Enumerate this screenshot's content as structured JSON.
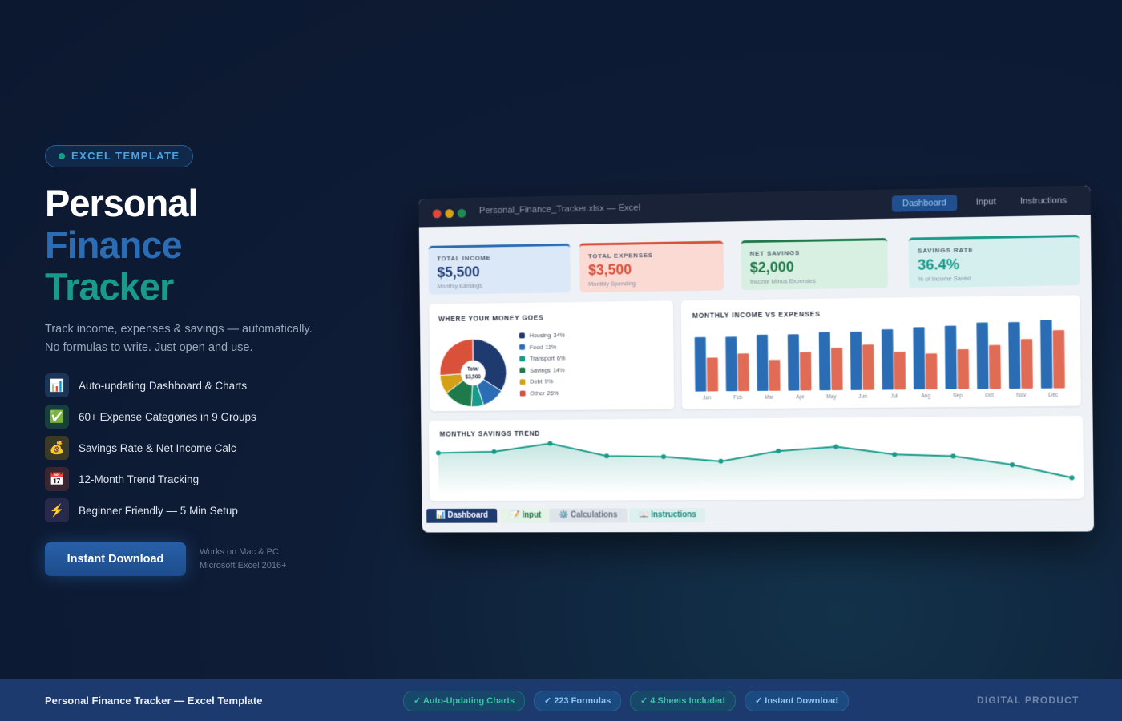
{
  "badge": "EXCEL TEMPLATE",
  "title": [
    "Personal",
    "Finance",
    "Tracker"
  ],
  "description": [
    "Track income, expenses & savings — automatically.",
    "No formulas to write. Just open and use."
  ],
  "features": [
    {
      "icon": "📊",
      "text": "Auto-updating Dashboard & Charts"
    },
    {
      "icon": "✅",
      "text": "60+ Expense Categories in 9 Groups"
    },
    {
      "icon": "💰",
      "text": "Savings Rate & Net Income Calc"
    },
    {
      "icon": "📅",
      "text": "12-Month Trend Tracking"
    },
    {
      "icon": "⚡",
      "text": "Beginner Friendly — 5 Min Setup"
    }
  ],
  "cta": {
    "button": "Instant Download",
    "note": [
      "Works on Mac & PC",
      "Microsoft Excel 2016+"
    ]
  },
  "window": {
    "file": "Personal_Finance_Tracker.xlsx — Excel",
    "tabs": [
      "Dashboard",
      "Input",
      "Instructions"
    ],
    "kpis": [
      {
        "label": "TOTAL INCOME",
        "value": "$5,500",
        "sub": "Monthly Earnings"
      },
      {
        "label": "TOTAL EXPENSES",
        "value": "$3,500",
        "sub": "Monthly Spending"
      },
      {
        "label": "NET SAVINGS",
        "value": "$2,000",
        "sub": "Income Minus Expenses"
      },
      {
        "label": "SAVINGS RATE",
        "value": "36.4%",
        "sub": "% of Income Saved"
      }
    ],
    "pie": {
      "type": "pie",
      "title": "WHERE YOUR MONEY GOES",
      "center": [
        "Total",
        "$3,500"
      ],
      "categories": [
        "Housing",
        "Food",
        "Transport",
        "Savings",
        "Debt",
        "Other"
      ],
      "values": [
        34,
        11,
        6,
        14,
        9,
        26
      ],
      "value_labels": [
        "34%",
        "11%",
        "6%",
        "14%",
        "9%",
        "26%"
      ],
      "colors": [
        "#1e3a6e",
        "#2a6db5",
        "#1a9a8a",
        "#1e7a4a",
        "#d4a017",
        "#d9503b"
      ]
    },
    "bar": {
      "type": "bar",
      "title": "MONTHLY INCOME VS EXPENSES",
      "categories": [
        "Jan",
        "Feb",
        "Mar",
        "Apr",
        "May",
        "Jun",
        "Jul",
        "Aug",
        "Sep",
        "Oct",
        "Nov",
        "Dec"
      ],
      "series": [
        {
          "color": "#2a6db5",
          "values": [
            58,
            58,
            60,
            60,
            62,
            62,
            64,
            66,
            67,
            70,
            70,
            72
          ]
        },
        {
          "color": "#e06c55",
          "values": [
            36,
            40,
            33,
            41,
            45,
            48,
            40,
            38,
            42,
            46,
            52,
            61
          ]
        }
      ]
    },
    "line": {
      "type": "line",
      "title": "MONTHLY SAVINGS TREND",
      "values": [
        28,
        29,
        37,
        24,
        23,
        18,
        28,
        32,
        24,
        22,
        13,
        0
      ],
      "color": "#1a9a8a"
    },
    "sheets": [
      "📊 Dashboard",
      "📝 Input",
      "⚙️ Calculations",
      "📖 Instructions"
    ]
  },
  "footer": {
    "title": "Personal Finance Tracker — Excel Template",
    "chips": [
      "✓ Auto-Updating Charts",
      "✓ 223 Formulas",
      "✓ 4 Sheets Included",
      "✓ Instant Download"
    ],
    "tag": "DIGITAL PRODUCT"
  }
}
